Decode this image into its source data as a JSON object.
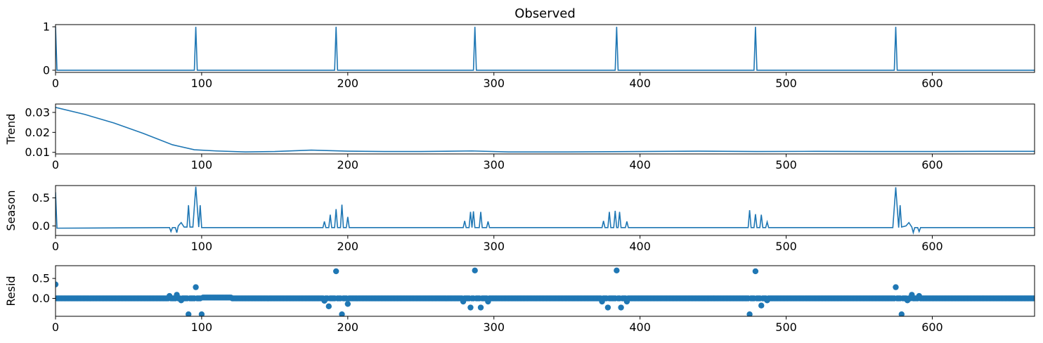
{
  "chart_data": [
    {
      "type": "line",
      "title": "Observed",
      "ylabel": "",
      "xlim": [
        0,
        670
      ],
      "ylim": [
        -0.05,
        1.05
      ],
      "xticks": [
        0,
        100,
        200,
        300,
        400,
        500,
        600
      ],
      "yticks": [
        0,
        1
      ],
      "ytick_labels": [
        "0",
        "1"
      ],
      "color": "#1f77b4",
      "baseline": 0,
      "spikes": [
        {
          "x": 0,
          "y": 1
        },
        {
          "x": 96,
          "y": 1
        },
        {
          "x": 192,
          "y": 1
        },
        {
          "x": 287,
          "y": 1
        },
        {
          "x": 384,
          "y": 1
        },
        {
          "x": 479,
          "y": 1
        },
        {
          "x": 575,
          "y": 1
        }
      ]
    },
    {
      "type": "line",
      "title": "",
      "ylabel": "Trend",
      "xlim": [
        0,
        670
      ],
      "ylim": [
        0.0092,
        0.0342
      ],
      "xticks": [
        0,
        100,
        200,
        300,
        400,
        500,
        600
      ],
      "yticks": [
        0.01,
        0.02,
        0.03
      ],
      "ytick_labels": [
        "0.01",
        "0.02",
        "0.03"
      ],
      "color": "#1f77b4",
      "points": [
        [
          0,
          0.0325
        ],
        [
          20,
          0.029
        ],
        [
          40,
          0.0247
        ],
        [
          60,
          0.0195
        ],
        [
          80,
          0.0138
        ],
        [
          95,
          0.0113
        ],
        [
          110,
          0.0107
        ],
        [
          130,
          0.0102
        ],
        [
          150,
          0.0104
        ],
        [
          175,
          0.0111
        ],
        [
          200,
          0.0106
        ],
        [
          225,
          0.0104
        ],
        [
          250,
          0.0104
        ],
        [
          285,
          0.0107
        ],
        [
          310,
          0.0102
        ],
        [
          350,
          0.0102
        ],
        [
          400,
          0.0104
        ],
        [
          440,
          0.0106
        ],
        [
          480,
          0.0104
        ],
        [
          520,
          0.0105
        ],
        [
          560,
          0.0104
        ],
        [
          600,
          0.0104
        ],
        [
          640,
          0.0105
        ],
        [
          670,
          0.0105
        ]
      ]
    },
    {
      "type": "line",
      "title": "",
      "ylabel": "Season",
      "xlim": [
        0,
        670
      ],
      "ylim": [
        -0.17,
        0.72
      ],
      "xticks": [
        0,
        100,
        200,
        300,
        400,
        500,
        600
      ],
      "yticks": [
        0.0,
        0.5
      ],
      "ytick_labels": [
        "0.0",
        "0.5"
      ],
      "color": "#1f77b4",
      "points": [
        [
          0,
          0.6
        ],
        [
          1,
          -0.04
        ],
        [
          76,
          -0.03
        ],
        [
          78,
          -0.03
        ],
        [
          79,
          -0.1
        ],
        [
          80,
          -0.03
        ],
        [
          82,
          -0.03
        ],
        [
          83,
          -0.12
        ],
        [
          84,
          0.0
        ],
        [
          86,
          0.06
        ],
        [
          88,
          -0.02
        ],
        [
          90,
          -0.02
        ],
        [
          91,
          0.37
        ],
        [
          92,
          -0.02
        ],
        [
          94,
          -0.02
        ],
        [
          96,
          0.7
        ],
        [
          98,
          -0.02
        ],
        [
          99,
          0.37
        ],
        [
          100,
          -0.03
        ],
        [
          183,
          -0.03
        ],
        [
          184,
          0.08
        ],
        [
          185,
          -0.03
        ],
        [
          187,
          -0.03
        ],
        [
          188,
          0.2
        ],
        [
          189,
          -0.03
        ],
        [
          191,
          -0.03
        ],
        [
          192,
          0.3
        ],
        [
          193,
          -0.03
        ],
        [
          195,
          -0.03
        ],
        [
          196,
          0.38
        ],
        [
          197,
          -0.03
        ],
        [
          199,
          -0.03
        ],
        [
          200,
          0.16
        ],
        [
          201,
          -0.03
        ],
        [
          279,
          -0.03
        ],
        [
          280,
          0.09
        ],
        [
          281,
          -0.03
        ],
        [
          283,
          -0.03
        ],
        [
          284,
          0.25
        ],
        [
          285,
          -0.03
        ],
        [
          286,
          0.26
        ],
        [
          287,
          -0.03
        ],
        [
          290,
          -0.03
        ],
        [
          291,
          0.25
        ],
        [
          292,
          -0.03
        ],
        [
          295,
          -0.03
        ],
        [
          296,
          0.08
        ],
        [
          297,
          -0.03
        ],
        [
          374,
          -0.03
        ],
        [
          375,
          0.09
        ],
        [
          376,
          -0.03
        ],
        [
          378,
          -0.03
        ],
        [
          379,
          0.25
        ],
        [
          380,
          -0.03
        ],
        [
          382,
          -0.03
        ],
        [
          383,
          0.27
        ],
        [
          384,
          -0.03
        ],
        [
          385,
          -0.03
        ],
        [
          386,
          0.25
        ],
        [
          387,
          -0.03
        ],
        [
          390,
          -0.03
        ],
        [
          391,
          0.08
        ],
        [
          392,
          -0.03
        ],
        [
          474,
          -0.03
        ],
        [
          475,
          0.28
        ],
        [
          476,
          -0.03
        ],
        [
          478,
          -0.03
        ],
        [
          479,
          0.21
        ],
        [
          480,
          -0.03
        ],
        [
          482,
          -0.03
        ],
        [
          483,
          0.2
        ],
        [
          484,
          -0.03
        ],
        [
          486,
          -0.03
        ],
        [
          487,
          0.07
        ],
        [
          488,
          -0.03
        ],
        [
          573,
          -0.03
        ],
        [
          575,
          0.69
        ],
        [
          577,
          -0.03
        ],
        [
          578,
          0.37
        ],
        [
          579,
          -0.02
        ],
        [
          582,
          0.0
        ],
        [
          584,
          0.06
        ],
        [
          586,
          -0.02
        ],
        [
          587,
          -0.12
        ],
        [
          588,
          -0.03
        ],
        [
          590,
          -0.03
        ],
        [
          591,
          -0.1
        ],
        [
          592,
          -0.03
        ],
        [
          670,
          -0.03
        ]
      ]
    },
    {
      "type": "scatter",
      "title": "",
      "ylabel": "Resid",
      "xlim": [
        0,
        670
      ],
      "ylim": [
        -0.45,
        0.82
      ],
      "xticks": [
        0,
        100,
        200,
        300,
        400,
        500,
        600
      ],
      "yticks": [
        0.0,
        0.5
      ],
      "ytick_labels": [
        "0.0",
        "0.5"
      ],
      "color": "#1f77b4",
      "baseline_points": {
        "from": 0,
        "to": 670,
        "step": 1,
        "y": 0.0
      },
      "bump": {
        "from": 100,
        "to": 120,
        "y": 0.02
      },
      "points": [
        [
          0,
          0.35
        ],
        [
          78,
          0.06
        ],
        [
          83,
          0.09
        ],
        [
          86,
          -0.05
        ],
        [
          91,
          -0.4
        ],
        [
          96,
          0.28
        ],
        [
          100,
          -0.4
        ],
        [
          184,
          -0.06
        ],
        [
          187,
          -0.2
        ],
        [
          192,
          0.68
        ],
        [
          196,
          -0.4
        ],
        [
          200,
          -0.14
        ],
        [
          279,
          -0.08
        ],
        [
          284,
          -0.23
        ],
        [
          287,
          0.7
        ],
        [
          291,
          -0.23
        ],
        [
          296,
          -0.08
        ],
        [
          374,
          -0.08
        ],
        [
          378,
          -0.23
        ],
        [
          384,
          0.7
        ],
        [
          387,
          -0.23
        ],
        [
          391,
          -0.08
        ],
        [
          475,
          -0.4
        ],
        [
          479,
          0.68
        ],
        [
          483,
          -0.18
        ],
        [
          487,
          -0.05
        ],
        [
          575,
          0.28
        ],
        [
          579,
          -0.4
        ],
        [
          583,
          -0.05
        ],
        [
          586,
          0.09
        ],
        [
          591,
          0.06
        ]
      ]
    }
  ]
}
